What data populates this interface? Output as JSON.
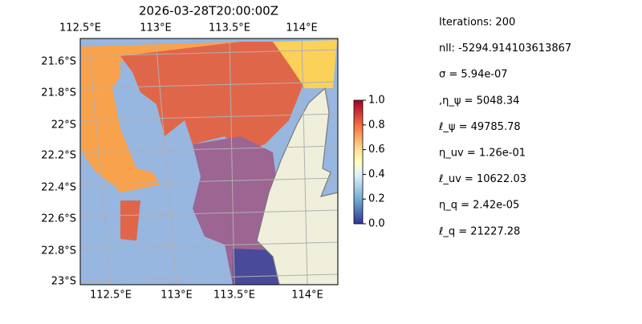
{
  "title": "2026-03-28T20:00:00Z",
  "map": {
    "lon_labels_top": [
      "112.5°E",
      "113°E",
      "113.5°E",
      "114°E"
    ],
    "lon_labels_bottom": [
      "112.5°E",
      "113°E",
      "113.5°E",
      "114°E"
    ],
    "lat_labels": [
      "21.6°S",
      "21.8°S",
      "22°S",
      "22.2°S",
      "22.4°S",
      "22.6°S",
      "22.8°S",
      "23°S"
    ]
  },
  "colorbar": {
    "ylim": [
      0,
      1
    ],
    "yticks": [
      {
        "value": 0,
        "label": "0.0"
      },
      0.2,
      0.4,
      0.6,
      0.8,
      {
        "value": 1,
        "label": "1.0"
      }
    ]
  },
  "info": [
    "Iterations: 200",
    "nll: -5294.914103613867",
    "σ = 5.94e-07",
    ",η_ψ = 5048.34",
    "ℓ_ψ = 49785.78",
    "η_uv = 1.26e-01",
    "ℓ_uv = 10622.03",
    "η_q = 2.42e-05",
    "ℓ_q = 21227.28"
  ]
}
